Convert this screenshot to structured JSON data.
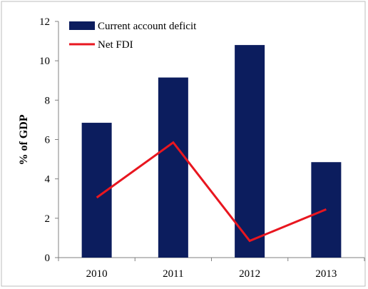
{
  "chart_data": {
    "type": "bar",
    "categories": [
      "2010",
      "2011",
      "2012",
      "2013"
    ],
    "series": [
      {
        "name": "Current account deficit",
        "type": "bar",
        "values": [
          6.85,
          9.15,
          10.8,
          4.85
        ],
        "color": "#0c1d5e"
      },
      {
        "name": "Net FDI",
        "type": "line",
        "values": [
          3.05,
          5.85,
          0.85,
          2.45
        ],
        "color": "#e8161f"
      }
    ],
    "ylabel": "% of GDP",
    "ylim": [
      0,
      12
    ],
    "yticks": [
      "0",
      "2",
      "4",
      "6",
      "8",
      "10",
      "12"
    ],
    "grid": false,
    "legend_position": "top-left"
  }
}
